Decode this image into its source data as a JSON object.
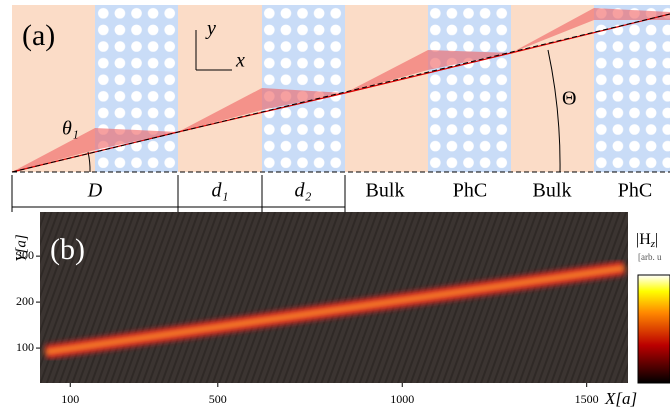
{
  "panel_a": {
    "label": "(a)",
    "axis_y": "y",
    "axis_x": "x",
    "theta1": "θ₁",
    "theta": "Θ",
    "segments": [
      "D",
      "d₁",
      "d₂",
      "Bulk",
      "PhC",
      "Bulk",
      "PhC"
    ]
  },
  "panel_b": {
    "label": "(b)",
    "y_label": "Y[a]",
    "x_label": "X[a]",
    "colorbar_label": {
      "main": "|H",
      "sub": "z",
      "end": "|"
    },
    "colorbar_units": "[arb. u",
    "xlim": [
      18,
      1612
    ],
    "ylim": [
      24,
      396
    ],
    "xticks": [
      100,
      500,
      1000,
      1500
    ],
    "yticks": [
      100,
      200,
      300
    ]
  }
}
